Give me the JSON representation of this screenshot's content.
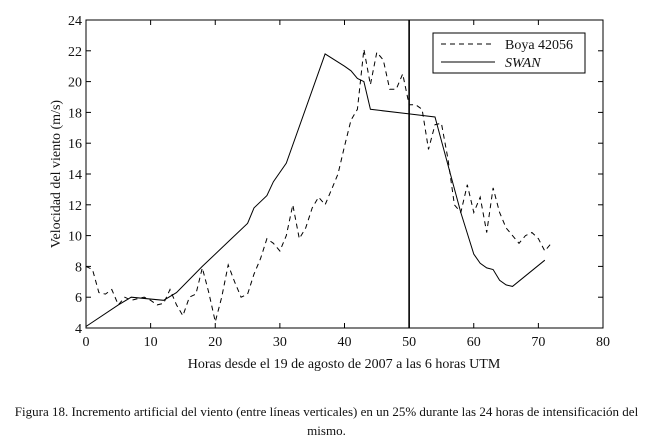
{
  "chart_data": {
    "type": "line",
    "caption": "Figura 18. Incremento artificial del viento (entre líneas verticales) en un 25% durante las 24 horas de intensificación del mismo.",
    "x_label": "Horas desde el 19 de agosto de 2007 a las 6 horas UTM",
    "y_label": "Velocidad del viento (m/s)",
    "xlim": [
      0,
      80
    ],
    "xticks": [
      0,
      10,
      20,
      30,
      40,
      50,
      60,
      70,
      80
    ],
    "ylim": [
      4,
      24
    ],
    "yticks": [
      4,
      6,
      8,
      10,
      12,
      14,
      16,
      18,
      20,
      22,
      24
    ],
    "vline_x": 50,
    "legend": "upper right",
    "series": [
      {
        "name": "Boya 42056",
        "color": "#000000",
        "dashed": true,
        "x": [
          0,
          1,
          2,
          3,
          4,
          5,
          6,
          7,
          8,
          9,
          10,
          11,
          12,
          13,
          14,
          15,
          16,
          17,
          18,
          19,
          20,
          21,
          22,
          23,
          24,
          25,
          26,
          27,
          28,
          29,
          30,
          31,
          32,
          33,
          34,
          35,
          36,
          37,
          38,
          39,
          40,
          41,
          42,
          43,
          44,
          45,
          46,
          47,
          48,
          49,
          50,
          51,
          52,
          53,
          54,
          55,
          56,
          57,
          58,
          59,
          60,
          61,
          62,
          63,
          64,
          65,
          66,
          67,
          68,
          69,
          70,
          71,
          72
        ],
        "values": [
          8.0,
          7.8,
          6.3,
          6.2,
          6.5,
          5.5,
          6.0,
          5.8,
          5.9,
          6.0,
          5.8,
          5.5,
          5.6,
          6.5,
          5.5,
          4.8,
          6.0,
          6.2,
          7.9,
          6.3,
          4.4,
          6.0,
          8.1,
          7.0,
          6.0,
          6.2,
          7.5,
          8.5,
          9.8,
          9.5,
          9.0,
          10.0,
          12.0,
          9.8,
          10.5,
          11.8,
          12.5,
          12.0,
          13.0,
          14.0,
          15.8,
          17.5,
          18.2,
          22.1,
          19.8,
          21.9,
          21.4,
          19.5,
          19.5,
          20.5,
          18.5,
          18.5,
          18.2,
          15.6,
          17.2,
          17.3,
          15.0,
          12.0,
          11.5,
          13.3,
          11.5,
          12.5,
          10.2,
          13.1,
          11.5,
          10.5,
          10.0,
          9.5,
          10.0,
          10.2,
          9.8,
          9.0,
          9.5
        ]
      },
      {
        "name": "SWAN",
        "color": "#000000",
        "dashed": false,
        "italic": true,
        "x": [
          0,
          5,
          7,
          12,
          14,
          18,
          22,
          25,
          26,
          28,
          29,
          31,
          37,
          40,
          41,
          42,
          43,
          44,
          50,
          54,
          58,
          60,
          61,
          62,
          63,
          64,
          65,
          66,
          71
        ],
        "values": [
          4.1,
          5.5,
          6.0,
          5.8,
          6.3,
          8.0,
          9.6,
          10.8,
          11.8,
          12.6,
          13.5,
          14.7,
          21.8,
          21.0,
          20.7,
          20.2,
          20.0,
          18.2,
          17.9,
          17.7,
          11.5,
          8.8,
          8.2,
          7.9,
          7.8,
          7.1,
          6.8,
          6.7,
          8.4
        ]
      }
    ]
  }
}
